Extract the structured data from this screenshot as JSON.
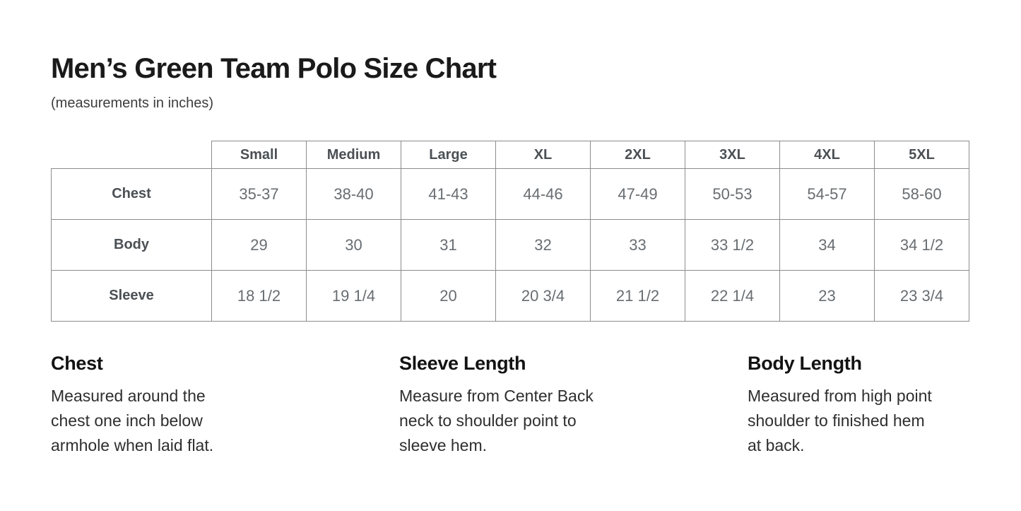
{
  "page": {
    "title": "Men’s Green Team Polo Size Chart",
    "subtitle": "(measurements in inches)"
  },
  "size_table": {
    "columns": [
      "Small",
      "Medium",
      "Large",
      "XL",
      "2XL",
      "3XL",
      "4XL",
      "5XL"
    ],
    "rows": [
      {
        "label": "Chest",
        "values": [
          "35-37",
          "38-40",
          "41-43",
          "44-46",
          "47-49",
          "50-53",
          "54-57",
          "58-60"
        ]
      },
      {
        "label": "Body",
        "values": [
          "29",
          "30",
          "31",
          "32",
          "33",
          "33 1/2",
          "34",
          "34 1/2"
        ]
      },
      {
        "label": "Sleeve",
        "values": [
          "18 1/2",
          "19 1/4",
          "20",
          "20 3/4",
          "21 1/2",
          "22 1/4",
          "23",
          "23 3/4"
        ]
      }
    ]
  },
  "definitions": [
    {
      "heading": "Chest",
      "text": "Measured around the\nchest one inch below\narmhole when laid flat."
    },
    {
      "heading": "Sleeve Length",
      "text": "Measure from Center Back\nneck to shoulder point to\nsleeve hem."
    },
    {
      "heading": "Body Length",
      "text": "Measured from high point\nshoulder to finished hem\nat back."
    }
  ],
  "colors": {
    "title_text": "#1a1a1a",
    "table_border": "#8c8c8c",
    "table_header_text": "#4b5055",
    "table_value_text": "#686d71",
    "body_text": "#2e2e2e"
  }
}
